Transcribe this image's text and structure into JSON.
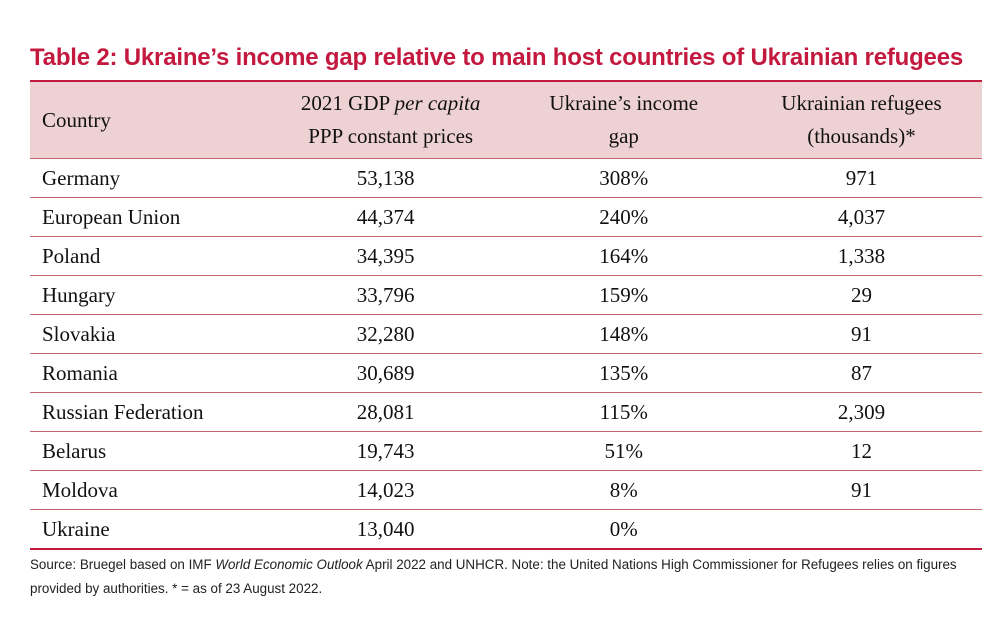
{
  "title": "Table 2: Ukraine’s income gap relative to main host countries of Ukrainian refugees",
  "table": {
    "headers": {
      "country": "Country",
      "gdp_line1_prefix": "2021 GDP ",
      "gdp_line1_italic": "per capita",
      "gdp_line2": "PPP constant prices",
      "gap_line1": "Ukraine’s income",
      "gap_line2": "gap",
      "refugees_line1": "Ukrainian refugees",
      "refugees_line2": "(thousands)*"
    },
    "rows": [
      {
        "country": "Germany",
        "gdp": "53,138",
        "gap": "308%",
        "refugees": "971"
      },
      {
        "country": "European Union",
        "gdp": "44,374",
        "gap": "240%",
        "refugees": "4,037"
      },
      {
        "country": "Poland",
        "gdp": "34,395",
        "gap": "164%",
        "refugees": "1,338"
      },
      {
        "country": "Hungary",
        "gdp": "33,796",
        "gap": "159%",
        "refugees": "29"
      },
      {
        "country": "Slovakia",
        "gdp": "32,280",
        "gap": "148%",
        "refugees": "91"
      },
      {
        "country": "Romania",
        "gdp": "30,689",
        "gap": "135%",
        "refugees": "87"
      },
      {
        "country": "Russian Federation",
        "gdp": "28,081",
        "gap": "115%",
        "refugees": "2,309"
      },
      {
        "country": "Belarus",
        "gdp": "19,743",
        "gap": "51%",
        "refugees": "12"
      },
      {
        "country": "Moldova",
        "gdp": "14,023",
        "gap": "8%",
        "refugees": "91"
      },
      {
        "country": "Ukraine",
        "gdp": "13,040",
        "gap": "0%",
        "refugees": ""
      }
    ]
  },
  "source_note": {
    "prefix": "Source: Bruegel based on IMF ",
    "italic": "World Economic Outlook",
    "suffix": " April 2022 and UNHCR. Note: the United Nations High Commissioner for Refugees relies on figures provided by authorities. * = as of 23 August 2022."
  },
  "colors": {
    "title": "#c4193f",
    "header_background": "#eed2d3",
    "rule_lines": "#c46670"
  }
}
